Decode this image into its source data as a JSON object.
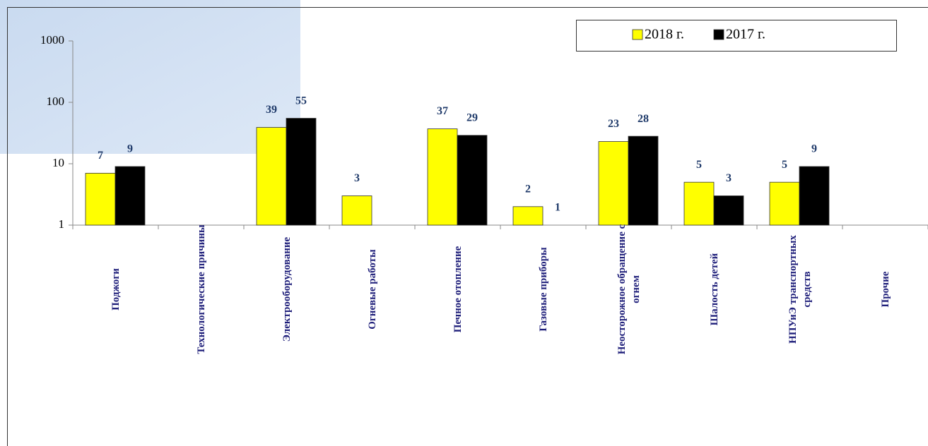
{
  "chart_data": {
    "type": "bar",
    "categories": [
      "Поджоги",
      "Технологические причины",
      "Электрооборудование",
      "Огневые работы",
      "Печное отопление",
      "Газовые приборы",
      "Неосторожное обращение с огнем",
      "Шалость детей",
      "НПУиЭ транспортных средств",
      "Прочие"
    ],
    "series": [
      {
        "name": "2018 г.",
        "color": "#ffff00",
        "values": [
          7,
          null,
          39,
          3,
          37,
          2,
          23,
          5,
          5,
          null
        ]
      },
      {
        "name": "2017 г.",
        "color": "#000000",
        "values": [
          9,
          null,
          55,
          null,
          29,
          1,
          28,
          3,
          9,
          null
        ]
      }
    ],
    "ylim": [
      1,
      1000
    ],
    "yticks": [
      1,
      10,
      100,
      1000
    ],
    "log": true,
    "legend": "top-right"
  }
}
